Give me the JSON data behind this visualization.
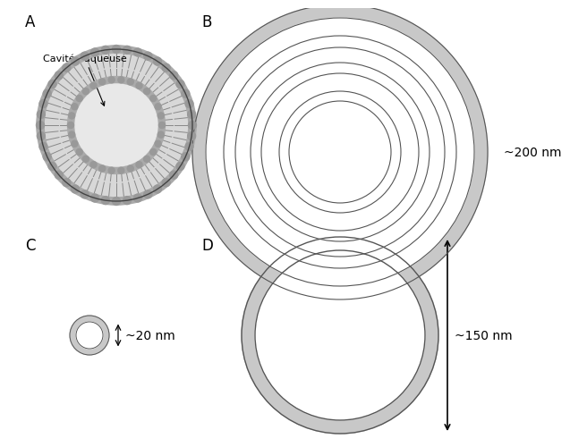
{
  "background_color": "#ffffff",
  "panel_label_fontsize": 12,
  "panel_label_color": "#000000",
  "annotation_text": "Cavitée aqueuse",
  "annotation_fontsize": 8,
  "ring_fill_color": "#c8c8c8",
  "ring_outline_color": "#555555",
  "size_label_fontsize": 10,
  "size_label_color": "#000000",
  "label_200nm": "~200 nm",
  "label_150nm": "~150 nm",
  "label_20nm": "~20 nm"
}
